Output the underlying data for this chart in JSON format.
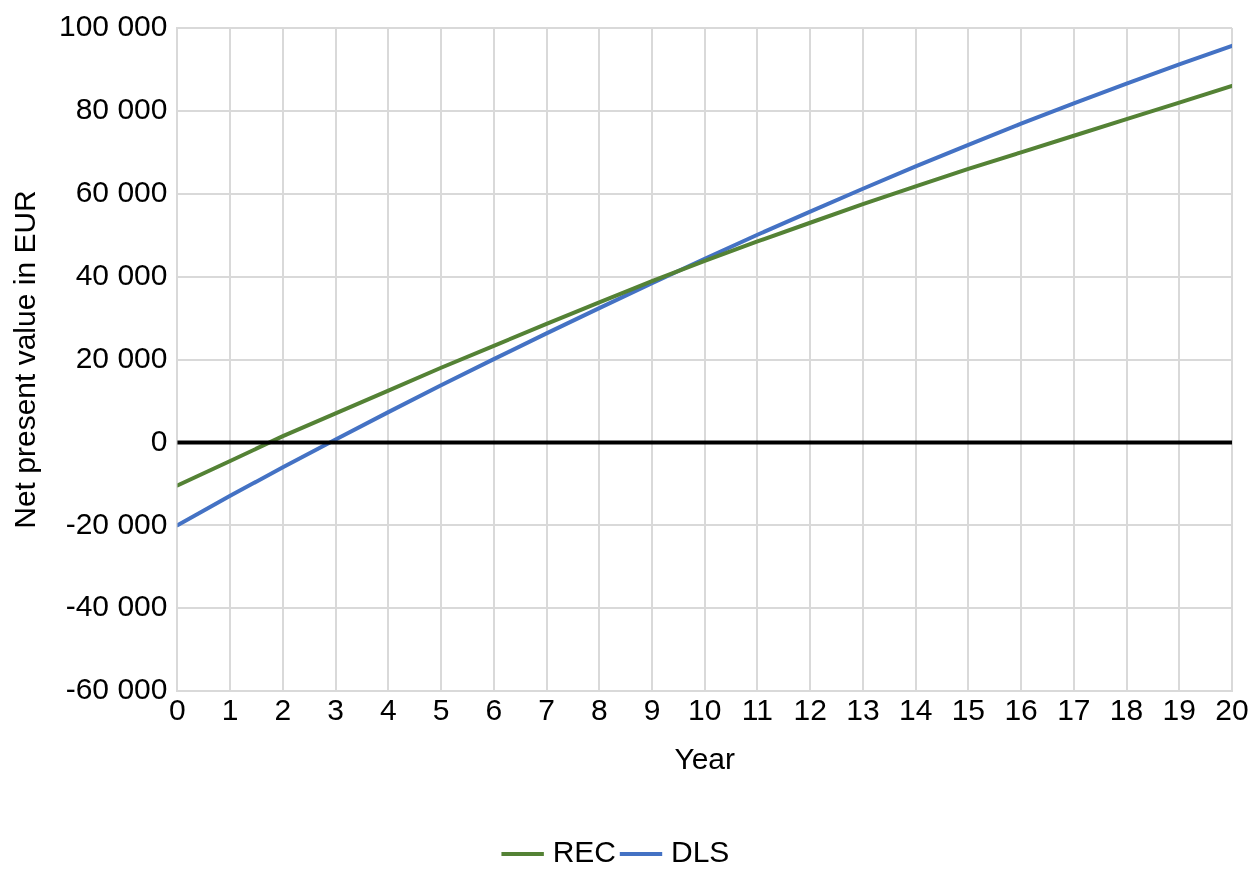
{
  "chart_data": {
    "type": "line",
    "xlabel": "Year",
    "ylabel": "Net present value in EUR",
    "x": [
      0,
      1,
      2,
      3,
      4,
      5,
      6,
      7,
      8,
      9,
      10,
      11,
      12,
      13,
      14,
      15,
      16,
      17,
      18,
      19,
      20
    ],
    "series": [
      {
        "name": "REC",
        "color": "#548235",
        "values": [
          -10400,
          -4500,
          1500,
          7000,
          12500,
          18000,
          23300,
          28600,
          33800,
          38900,
          43800,
          48500,
          53000,
          57500,
          61800,
          66000,
          70000,
          74000,
          78000,
          82000,
          86000
        ]
      },
      {
        "name": "DLS",
        "color": "#4472c4",
        "values": [
          -20000,
          -12900,
          -6000,
          700,
          7300,
          13800,
          20100,
          26300,
          32400,
          38400,
          44300,
          50100,
          55700,
          61200,
          66600,
          71800,
          76900,
          81800,
          86600,
          91200,
          95700
        ]
      }
    ],
    "xlim": [
      0,
      20
    ],
    "xticks": [
      0,
      1,
      2,
      3,
      4,
      5,
      6,
      7,
      8,
      9,
      10,
      11,
      12,
      13,
      14,
      15,
      16,
      17,
      18,
      19,
      20
    ],
    "ylim": [
      -60000,
      100000
    ],
    "yticks": [
      {
        "value": -60000,
        "label": "-60 000"
      },
      {
        "value": -40000,
        "label": "-40 000"
      },
      {
        "value": -20000,
        "label": "-20 000"
      },
      {
        "value": 0,
        "label": "0"
      },
      {
        "value": 20000,
        "label": "20 000"
      },
      {
        "value": 40000,
        "label": "40 000"
      },
      {
        "value": 60000,
        "label": "60 000"
      },
      {
        "value": 80000,
        "label": "80 000"
      },
      {
        "value": 100000,
        "label": "100 000"
      }
    ],
    "ref_lines": [
      {
        "axis": "y",
        "value": 0,
        "color": "#000000"
      }
    ],
    "grid": true,
    "legend": "bottom",
    "marker": "none",
    "line_style": "solid"
  }
}
